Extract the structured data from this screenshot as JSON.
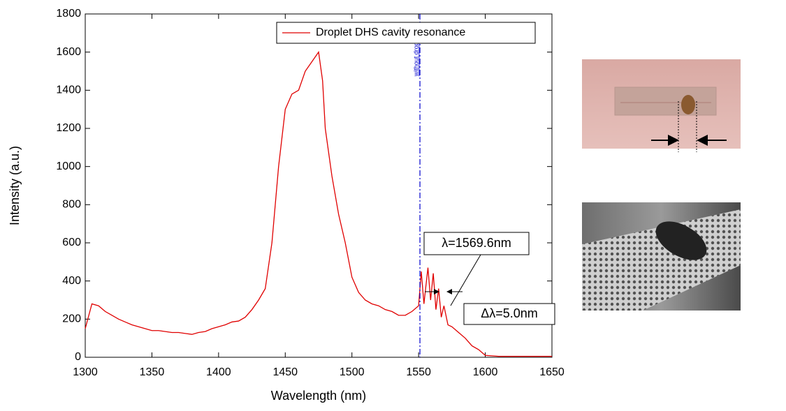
{
  "chart_data": {
    "type": "line",
    "xlabel": "Wavelength (nm)",
    "ylabel": "Intensity (a.u.)",
    "xlim": [
      1300,
      1650
    ],
    "xticks": [
      1300,
      1350,
      1400,
      1450,
      1500,
      1550,
      1600,
      1650
    ],
    "ylim": [
      0,
      1800
    ],
    "yticks": [
      0,
      200,
      400,
      600,
      800,
      1000,
      1200,
      1400,
      1600,
      1800
    ],
    "legend": "top-right",
    "x": [
      1300,
      1305,
      1310,
      1315,
      1320,
      1325,
      1330,
      1335,
      1340,
      1345,
      1350,
      1355,
      1360,
      1365,
      1370,
      1375,
      1380,
      1385,
      1390,
      1395,
      1400,
      1405,
      1410,
      1415,
      1420,
      1425,
      1430,
      1435,
      1440,
      1445,
      1450,
      1455,
      1460,
      1465,
      1470,
      1475,
      1478,
      1480,
      1485,
      1490,
      1495,
      1500,
      1505,
      1510,
      1515,
      1520,
      1525,
      1530,
      1535,
      1540,
      1545,
      1550,
      1552,
      1554,
      1557,
      1559,
      1561,
      1563,
      1565,
      1567,
      1569,
      1572,
      1575,
      1580,
      1585,
      1590,
      1595,
      1600,
      1610,
      1620,
      1630,
      1640,
      1650
    ],
    "series": [
      {
        "name": "Droplet DHS cavity resonance",
        "color": "#e00000",
        "values": [
          150,
          280,
          270,
          240,
          220,
          200,
          185,
          170,
          160,
          150,
          140,
          140,
          135,
          130,
          130,
          125,
          120,
          130,
          135,
          150,
          160,
          170,
          185,
          190,
          210,
          250,
          300,
          360,
          600,
          1000,
          1300,
          1380,
          1400,
          1500,
          1550,
          1600,
          1450,
          1200,
          950,
          750,
          600,
          420,
          340,
          300,
          280,
          270,
          250,
          240,
          220,
          220,
          240,
          270,
          450,
          280,
          470,
          300,
          440,
          250,
          360,
          210,
          270,
          170,
          160,
          130,
          100,
          60,
          40,
          10,
          5,
          5,
          5,
          5,
          5
        ]
      }
    ],
    "reference_line": {
      "x": 1551,
      "label": "without droplet",
      "color": "#0000cc"
    },
    "annotations": [
      "λ=1569.6nm",
      "Δλ=5.0nm"
    ]
  }
}
